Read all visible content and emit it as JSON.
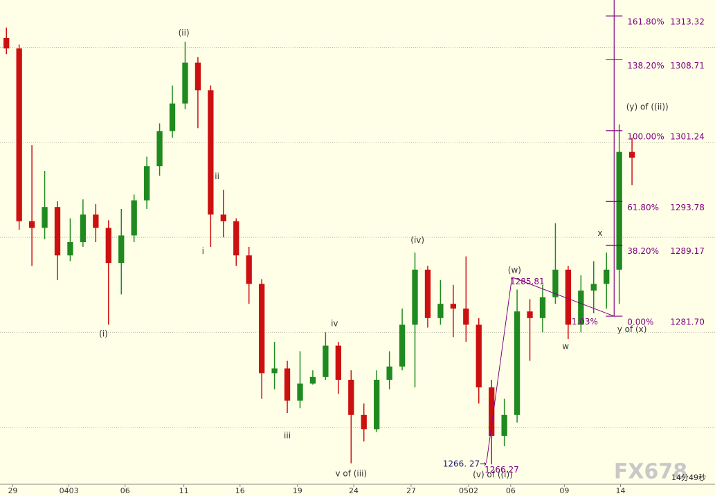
{
  "chart_data": {
    "type": "candlestick",
    "x": [
      0.5,
      1.5,
      2.5,
      3.5,
      4.5,
      5.5,
      6.5,
      7.5,
      8.5,
      9.5,
      10.5,
      11.5,
      12.5,
      13.5,
      14.5,
      15.5,
      16.5,
      17.5,
      18.5,
      19.5,
      20.5,
      21.5,
      22.5,
      23.5,
      24.5,
      25.5,
      26.5,
      27.5,
      28.5,
      29.5,
      30.5,
      31.5,
      32.5,
      33.5,
      34.5,
      35.5,
      36.5,
      37.5,
      38.5,
      39.5,
      40.5,
      41.5,
      42.5,
      43.5,
      44.5,
      45.5,
      46.5,
      47.5,
      48.5,
      49.5
    ],
    "open": [
      1311.0,
      1309.9,
      1291.7,
      1291.0,
      1293.2,
      1288.1,
      1289.5,
      1292.4,
      1291.0,
      1287.3,
      1290.2,
      1293.9,
      1297.5,
      1301.2,
      1304.1,
      1308.4,
      1305.5,
      1292.4,
      1291.7,
      1288.1,
      1285.1,
      1275.7,
      1276.2,
      1272.8,
      1274.6,
      1275.3,
      1278.6,
      1275.0,
      1271.3,
      1269.8,
      1275.0,
      1276.4,
      1280.8,
      1286.6,
      1281.5,
      1283.0,
      1282.5,
      1280.8,
      1274.2,
      1269.1,
      1271.3,
      1282.2,
      1281.5,
      1283.7,
      1286.6,
      1280.8,
      1284.4,
      1285.1,
      1286.6,
      1299.0
    ],
    "high": [
      1312.1,
      1310.3,
      1299.7,
      1297.0,
      1293.8,
      1292.0,
      1294.0,
      1293.5,
      1291.8,
      1293.0,
      1294.5,
      1298.5,
      1302.0,
      1306.0,
      1310.6,
      1309.0,
      1306.0,
      1295.0,
      1292.0,
      1289.0,
      1285.6,
      1279.0,
      1277.0,
      1278.0,
      1276.0,
      1280.0,
      1279.0,
      1276.0,
      1272.5,
      1276.0,
      1278.0,
      1282.5,
      1288.4,
      1287.0,
      1285.5,
      1285.0,
      1288.0,
      1281.5,
      1275.0,
      1273.0,
      1284.5,
      1283.5,
      1285.0,
      1291.5,
      1287.0,
      1286.0,
      1287.5,
      1288.4,
      1301.9,
      1300.5
    ],
    "low": [
      1309.3,
      1290.8,
      1287.0,
      1289.8,
      1285.5,
      1287.5,
      1289.0,
      1289.5,
      1280.8,
      1284.0,
      1289.5,
      1293.0,
      1296.5,
      1300.5,
      1303.5,
      1301.5,
      1289.0,
      1290.0,
      1287.0,
      1283.0,
      1273.0,
      1274.0,
      1271.5,
      1272.0,
      1274.5,
      1275.0,
      1273.5,
      1266.2,
      1268.5,
      1269.5,
      1274.0,
      1276.0,
      1274.2,
      1280.5,
      1280.8,
      1279.5,
      1279.0,
      1272.5,
      1266.1,
      1268.0,
      1270.5,
      1277.0,
      1280.0,
      1283.0,
      1279.3,
      1280.0,
      1282.0,
      1282.5,
      1283.0,
      1295.5
    ],
    "close": [
      1309.9,
      1291.7,
      1291.0,
      1293.2,
      1288.1,
      1289.5,
      1292.4,
      1291.0,
      1287.3,
      1290.2,
      1293.9,
      1297.5,
      1301.2,
      1304.1,
      1308.4,
      1305.5,
      1292.4,
      1291.7,
      1288.1,
      1285.1,
      1275.7,
      1276.2,
      1272.8,
      1274.6,
      1275.3,
      1278.6,
      1275.0,
      1271.3,
      1269.8,
      1275.0,
      1276.4,
      1280.8,
      1286.6,
      1281.5,
      1283.0,
      1282.5,
      1280.8,
      1274.2,
      1269.1,
      1271.3,
      1282.2,
      1281.5,
      1283.7,
      1286.6,
      1280.8,
      1284.4,
      1285.1,
      1286.6,
      1299.0,
      1298.4
    ],
    "up_color": "#1f8a1f",
    "down_color": "#cc1010",
    "xlim": [
      0,
      56
    ],
    "xticks": [
      {
        "value": 1.0,
        "label": "29"
      },
      {
        "value": 5.4,
        "label": "0403"
      },
      {
        "value": 9.8,
        "label": "06"
      },
      {
        "value": 14.4,
        "label": "11"
      },
      {
        "value": 18.8,
        "label": "16"
      },
      {
        "value": 23.3,
        "label": "19"
      },
      {
        "value": 27.7,
        "label": "24"
      },
      {
        "value": 32.2,
        "label": "27"
      },
      {
        "value": 36.7,
        "label": "0502"
      },
      {
        "value": 40.0,
        "label": "06"
      },
      {
        "value": 44.2,
        "label": "09"
      },
      {
        "value": 48.6,
        "label": "14"
      }
    ],
    "ylim": [
      1264,
      1315
    ],
    "yticks": [
      1270,
      1280,
      1290,
      1300,
      1310
    ],
    "grid": true,
    "fib_levels": {
      "labels": [
        "161.80%",
        "138.20%",
        "100.00%",
        "61.80%",
        "38.20%",
        "0.00%"
      ],
      "values": [
        1313.32,
        1308.71,
        1301.24,
        1293.78,
        1289.17,
        1281.7
      ],
      "value_labels": [
        "1313.32",
        "1308.71",
        "1301.24",
        "1293.78",
        "1289.17",
        "1281.70"
      ],
      "color": "#800080"
    },
    "measure": {
      "x": [
        38.1,
        40.1,
        48.1
      ],
      "y": [
        1266.27,
        1285.81,
        1281.7
      ],
      "color": "#800080"
    },
    "annotations": [
      {
        "text": "(i)",
        "x": 8.1,
        "y": 1279.8,
        "color": "#333333"
      },
      {
        "text": "(ii)",
        "x": 14.4,
        "y": 1311.5,
        "color": "#333333"
      },
      {
        "text": "i",
        "x": 15.9,
        "y": 1288.5,
        "color": "#333333"
      },
      {
        "text": "ii",
        "x": 17.0,
        "y": 1296.4,
        "color": "#333333"
      },
      {
        "text": "iii",
        "x": 22.5,
        "y": 1269.1,
        "color": "#333333"
      },
      {
        "text": "iv",
        "x": 26.2,
        "y": 1280.9,
        "color": "#333333"
      },
      {
        "text": "v of (iii)",
        "x": 27.5,
        "y": 1265.1,
        "color": "#333333"
      },
      {
        "text": "(iv)",
        "x": 32.7,
        "y": 1289.7,
        "color": "#333333"
      },
      {
        "text": "(v) of ((i))",
        "x": 38.6,
        "y": 1265.0,
        "color": "#333333"
      },
      {
        "text": "(w)",
        "x": 40.3,
        "y": 1286.5,
        "color": "#333333"
      },
      {
        "text": "w",
        "x": 44.3,
        "y": 1278.5,
        "color": "#333333"
      },
      {
        "text": "x",
        "x": 47.0,
        "y": 1290.4,
        "color": "#333333"
      },
      {
        "text": "y of (x)",
        "x": 49.5,
        "y": 1280.3,
        "color": "#333333"
      },
      {
        "text": "(y) of ((ii))",
        "x": 50.7,
        "y": 1303.7,
        "color": "#333333"
      },
      {
        "text": "1285.81",
        "x": 41.3,
        "y": 1285.3,
        "color": "#800080"
      },
      {
        "text": "1266.27",
        "x": 39.3,
        "y": 1265.5,
        "color": "#800080"
      },
      {
        "text": "1266. 27→",
        "x": 36.4,
        "y": 1266.1,
        "color": "#1a1a6e"
      },
      {
        "text": "1.03%",
        "x": 45.8,
        "y": 1281.1,
        "color": "#800080"
      }
    ],
    "watermark": "FX678",
    "timer": "14分49秒"
  }
}
